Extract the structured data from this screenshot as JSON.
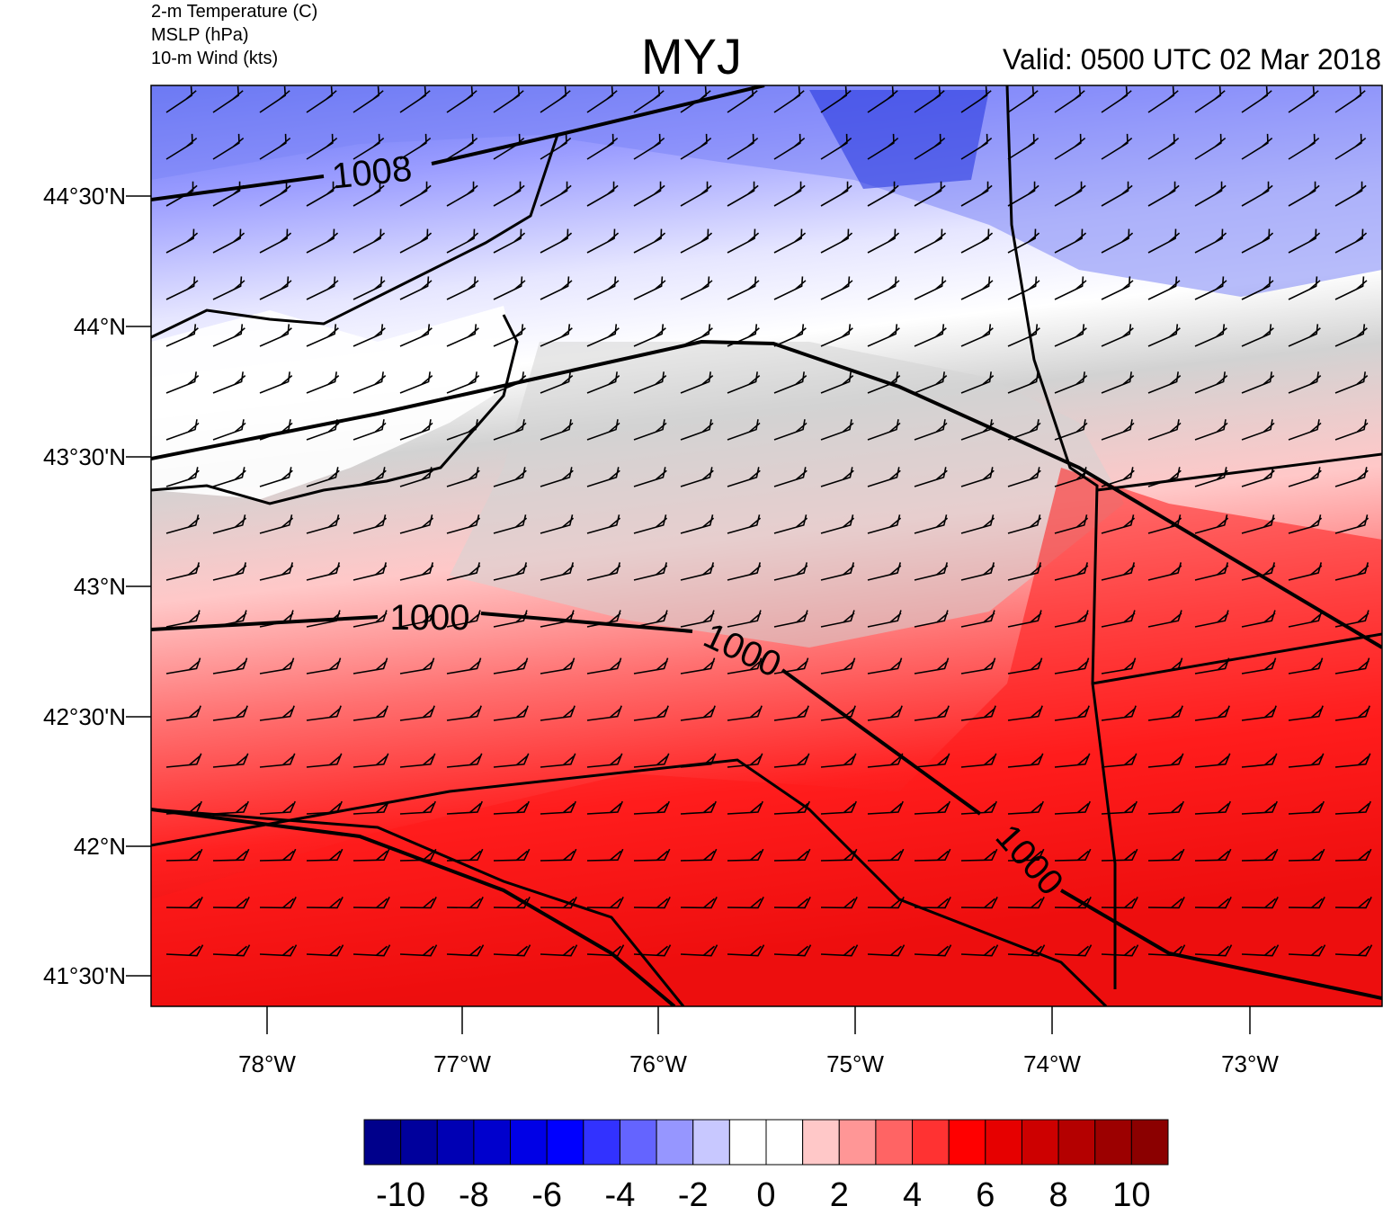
{
  "header": {
    "variables": [
      "2-m Temperature (C)",
      "MSLP (hPa)",
      "10-m Wind (kts)"
    ],
    "title": "MYJ",
    "valid": "Valid: 0500 UTC 02 Mar 2018"
  },
  "map": {
    "lat_labels": [
      "44°30'N",
      "44°N",
      "43°30'N",
      "43°N",
      "42°30'N",
      "42°N",
      "41°30'N"
    ],
    "lon_labels": [
      "78°W",
      "77°W",
      "76°W",
      "75°W",
      "74°W",
      "73°W"
    ],
    "isobar_labels": [
      "1008",
      "1000",
      "1000",
      "1000"
    ]
  },
  "colorbar": {
    "labels": [
      "-10",
      "-8",
      "-6",
      "-4",
      "-2",
      "0",
      "2",
      "4",
      "6",
      "8",
      "10"
    ],
    "colors": [
      "#00008b",
      "#00009c",
      "#0000b4",
      "#0000cd",
      "#0000e6",
      "#0000ff",
      "#3232ff",
      "#6464ff",
      "#9696ff",
      "#c8c8ff",
      "#ffffff",
      "#ffffff",
      "#ffc8c8",
      "#ff9696",
      "#ff6464",
      "#ff3232",
      "#ff0000",
      "#e60000",
      "#cd0000",
      "#b40000",
      "#9c0000",
      "#8b0000"
    ]
  }
}
